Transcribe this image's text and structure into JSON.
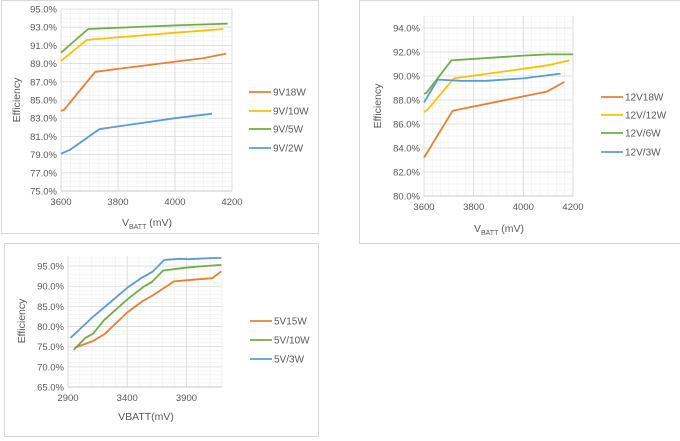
{
  "chart_data": [
    {
      "type": "line",
      "xlabel_main": "V",
      "xlabel_sub": "BATT",
      "xlabel_unit": " (mV)",
      "ylabel": "Efficiency",
      "xlim": [
        3600,
        4200
      ],
      "ylim": [
        75,
        95
      ],
      "xticks": [
        "3600",
        "3800",
        "4000",
        "4200"
      ],
      "yticks": [
        "75.0%",
        "77.0%",
        "79.0%",
        "81.0%",
        "83.0%",
        "85.0%",
        "87.0%",
        "89.0%",
        "91.0%",
        "93.0%",
        "95.0%"
      ],
      "grid": true,
      "legend": "right",
      "series": [
        {
          "name": "9V18W",
          "color": "#ed7d31",
          "x": [
            3600,
            3610,
            3720,
            4100,
            4180
          ],
          "y": [
            83.8,
            83.9,
            88.1,
            89.6,
            90.1
          ]
        },
        {
          "name": "9V/10W",
          "color": "#ffc000",
          "x": [
            3600,
            3690,
            4000,
            4170
          ],
          "y": [
            89.3,
            91.6,
            92.4,
            92.8
          ]
        },
        {
          "name": "9V/5W",
          "color": "#70ad47",
          "x": [
            3600,
            3695,
            4000,
            4185
          ],
          "y": [
            90.2,
            92.8,
            93.2,
            93.4
          ]
        },
        {
          "name": "9V/2W",
          "color": "#5b9bd5",
          "x": [
            3600,
            3630,
            3735,
            4000,
            4130
          ],
          "y": [
            79.1,
            79.5,
            81.8,
            83.0,
            83.5
          ]
        }
      ]
    },
    {
      "type": "line",
      "xlabel_main": "V",
      "xlabel_sub": "BATT",
      "xlabel_unit": " (mV)",
      "ylabel": "Efficiency",
      "xlim": [
        3600,
        4200
      ],
      "ylim": [
        80,
        95
      ],
      "xticks": [
        "3600",
        "3800",
        "4000",
        "4200"
      ],
      "yticks": [
        "80.0%",
        "82.0%",
        "84.0%",
        "86.0%",
        "88.0%",
        "90.0%",
        "92.0%",
        "94.0%"
      ],
      "grid": true,
      "legend": "right",
      "series": [
        {
          "name": "12V18W",
          "color": "#ed7d31",
          "x": [
            3600,
            3715,
            4000,
            4095,
            4165
          ],
          "y": [
            83.2,
            87.1,
            88.3,
            88.7,
            89.5
          ]
        },
        {
          "name": "12V/12W",
          "color": "#ffc000",
          "x": [
            3600,
            3615,
            3720,
            4000,
            4100,
            4185
          ],
          "y": [
            87.0,
            87.2,
            89.8,
            90.6,
            90.9,
            91.3
          ]
        },
        {
          "name": "12V/6W",
          "color": "#70ad47",
          "x": [
            3600,
            3610,
            3710,
            4000,
            4100,
            4200
          ],
          "y": [
            88.5,
            88.6,
            91.3,
            91.7,
            91.8,
            91.8
          ]
        },
        {
          "name": "12V/3W",
          "color": "#5b9bd5",
          "x": [
            3600,
            3655,
            3750,
            3850,
            4000,
            4150
          ],
          "y": [
            87.8,
            89.7,
            89.6,
            89.6,
            89.8,
            90.2
          ]
        }
      ]
    },
    {
      "type": "line",
      "xlabel_main": "VBATT(mV)",
      "xlabel_sub": "",
      "xlabel_unit": "",
      "ylabel": "Efficiency",
      "xlim": [
        2900,
        4200
      ],
      "ylim": [
        65,
        97.5
      ],
      "xticks": [
        "2900",
        "3400",
        "3900"
      ],
      "yticks": [
        "65.0%",
        "70.0%",
        "75.0%",
        "80.0%",
        "85.0%",
        "90.0%",
        "95.0%"
      ],
      "grid": true,
      "legend": "right",
      "series": [
        {
          "name": "5V15W",
          "color": "#ed7d31",
          "x": [
            2956,
            3110,
            3208,
            3404,
            3530,
            3614,
            3796,
            3908,
            4118,
            4194
          ],
          "y": [
            74.7,
            76.4,
            78.1,
            83.6,
            86.3,
            87.7,
            91.2,
            91.5,
            92.0,
            93.7
          ]
        },
        {
          "name": "5V/10W",
          "color": "#70ad47",
          "x": [
            2948,
            3048,
            3110,
            3208,
            3404,
            3530,
            3609,
            3704,
            3894,
            4006,
            4194
          ],
          "y": [
            74.2,
            77.2,
            78.2,
            81.7,
            86.8,
            89.7,
            91.1,
            93.9,
            94.6,
            94.9,
            95.3
          ]
        },
        {
          "name": "5V/3W",
          "color": "#5b9bd5",
          "x": [
            2922,
            3110,
            3404,
            3516,
            3614,
            3712,
            3838,
            3922,
            4118,
            4194
          ],
          "y": [
            77.2,
            82.4,
            89.7,
            92.0,
            93.6,
            96.5,
            96.8,
            96.7,
            97.0,
            97.0
          ]
        }
      ]
    }
  ]
}
